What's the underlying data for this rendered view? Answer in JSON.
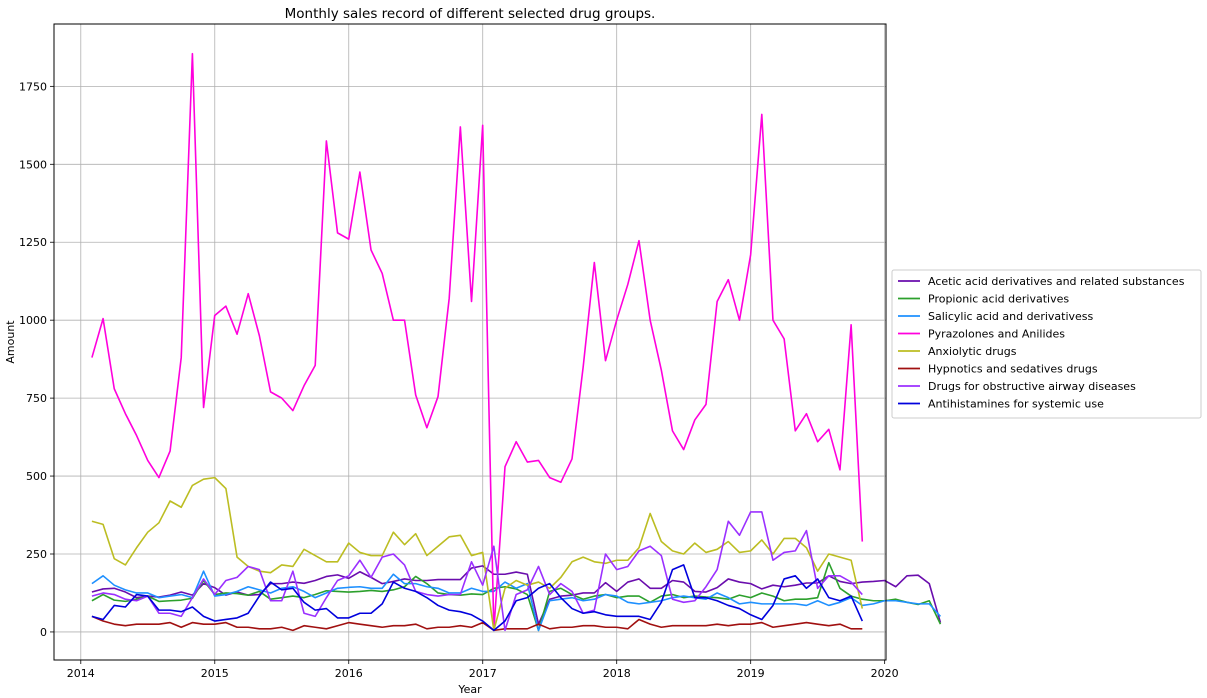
{
  "chart_data": {
    "type": "line",
    "title": "Monthly sales record of different selected drug groups.",
    "xlabel": "Year",
    "ylabel": "Amount",
    "xlim": [
      2013.8,
      2020.01
    ],
    "ylim": [
      -90,
      1950
    ],
    "xticks": [
      2014,
      2015,
      2016,
      2017,
      2018,
      2019,
      2020
    ],
    "xtick_labels": [
      "2014",
      "2015",
      "2016",
      "2017",
      "2018",
      "2019",
      "2020"
    ],
    "yticks": [
      0,
      250,
      500,
      750,
      1000,
      1250,
      1500,
      1750
    ],
    "ytick_labels": [
      "0",
      "250",
      "500",
      "750",
      "1000",
      "1250",
      "1500",
      "1750"
    ],
    "grid": true,
    "legend_position": "outside-right",
    "x_start": 2014.083,
    "x_step_months": 1,
    "series": [
      {
        "name": "Acetic acid derivatives and related substances",
        "color": "#6a0dad",
        "values": [
          128,
          138,
          140,
          128,
          110,
          115,
          112,
          118,
          128,
          118,
          155,
          142,
          118,
          128,
          118,
          120,
          155,
          155,
          160,
          156,
          165,
          178,
          183,
          172,
          193,
          175,
          155,
          162,
          170,
          165,
          165,
          168,
          168,
          168,
          205,
          212,
          185,
          185,
          192,
          185,
          25,
          105,
          115,
          118,
          125,
          125,
          158,
          130,
          160,
          170,
          140,
          140,
          165,
          160,
          130,
          128,
          142,
          170,
          160,
          155,
          138,
          150,
          145,
          150,
          157,
          157,
          180,
          162,
          155,
          160,
          162,
          165,
          145,
          180,
          182,
          155,
          30
        ]
      },
      {
        "name": "Propionic acid derivatives",
        "color": "#2ca02c",
        "values": [
          100,
          120,
          102,
          98,
          105,
          115,
          98,
          100,
          102,
          108,
          165,
          120,
          125,
          123,
          118,
          130,
          105,
          110,
          115,
          110,
          120,
          132,
          130,
          128,
          130,
          133,
          130,
          135,
          145,
          178,
          155,
          125,
          120,
          118,
          122,
          120,
          140,
          145,
          138,
          120,
          5,
          130,
          140,
          120,
          105,
          115,
          120,
          110,
          115,
          115,
          95,
          115,
          120,
          110,
          115,
          112,
          110,
          105,
          118,
          110,
          125,
          115,
          100,
          105,
          105,
          110,
          222,
          140,
          115,
          105,
          100,
          100,
          105,
          95,
          88,
          100,
          25
        ]
      },
      {
        "name": "Salicylic acid and derivativess",
        "color": "#1e90ff",
        "values": [
          155,
          180,
          150,
          135,
          125,
          125,
          110,
          115,
          120,
          110,
          195,
          115,
          120,
          130,
          145,
          135,
          125,
          140,
          145,
          130,
          110,
          125,
          140,
          143,
          145,
          140,
          140,
          185,
          155,
          155,
          145,
          140,
          125,
          125,
          140,
          130,
          130,
          160,
          140,
          155,
          5,
          100,
          105,
          110,
          100,
          105,
          120,
          115,
          95,
          90,
          95,
          100,
          110,
          115,
          110,
          105,
          125,
          110,
          90,
          95,
          90,
          90,
          90,
          90,
          85,
          100,
          85,
          95,
          110,
          85,
          90,
          100,
          100,
          95,
          90,
          90,
          50
        ]
      },
      {
        "name": "Pyrazolones and Anilides",
        "color": "#ff00dd",
        "values": [
          880,
          1005,
          780,
          700,
          630,
          550,
          495,
          580,
          880,
          1855,
          720,
          1015,
          1045,
          955,
          1085,
          950,
          770,
          750,
          710,
          790,
          855,
          1575,
          1280,
          1260,
          1475,
          1225,
          1150,
          1000,
          1000,
          760,
          655,
          755,
          1070,
          1620,
          1060,
          1625,
          5,
          530,
          610,
          545,
          550,
          495,
          480,
          555,
          850,
          1185,
          870,
          1000,
          1115,
          1255,
          1000,
          840,
          645,
          585,
          680,
          730,
          1060,
          1130,
          1000,
          1210,
          1660,
          1000,
          940,
          645,
          700,
          610,
          650,
          520,
          985,
          290
        ]
      },
      {
        "name": "Anxiolytic drugs",
        "color": "#bcbd22",
        "values": [
          355,
          345,
          235,
          215,
          270,
          320,
          350,
          420,
          400,
          470,
          490,
          495,
          460,
          240,
          210,
          195,
          190,
          215,
          210,
          265,
          245,
          225,
          225,
          285,
          255,
          245,
          245,
          320,
          280,
          315,
          245,
          275,
          305,
          310,
          245,
          255,
          5,
          140,
          165,
          150,
          160,
          140,
          175,
          225,
          240,
          225,
          220,
          230,
          230,
          270,
          380,
          290,
          260,
          250,
          285,
          255,
          265,
          290,
          255,
          260,
          295,
          250,
          300,
          300,
          270,
          195,
          250,
          240,
          230,
          75
        ]
      },
      {
        "name": "Hypnotics and sedatives drugs",
        "color": "#a01010",
        "values": [
          50,
          35,
          25,
          20,
          25,
          25,
          25,
          30,
          15,
          30,
          25,
          25,
          30,
          15,
          15,
          10,
          10,
          15,
          5,
          20,
          15,
          10,
          20,
          30,
          25,
          20,
          15,
          20,
          20,
          25,
          10,
          15,
          15,
          20,
          15,
          30,
          5,
          10,
          10,
          10,
          25,
          10,
          15,
          15,
          20,
          20,
          15,
          15,
          10,
          40,
          25,
          15,
          20,
          20,
          20,
          20,
          25,
          20,
          25,
          25,
          30,
          15,
          20,
          25,
          30,
          25,
          20,
          25,
          10,
          10
        ]
      },
      {
        "name": "Drugs for obstructive airway diseases",
        "color": "#9b30ff",
        "values": [
          115,
          125,
          120,
          105,
          100,
          115,
          60,
          60,
          50,
          110,
          170,
          120,
          165,
          175,
          210,
          200,
          100,
          100,
          195,
          60,
          50,
          110,
          165,
          180,
          230,
          175,
          240,
          250,
          215,
          130,
          120,
          115,
          120,
          120,
          225,
          150,
          275,
          5,
          120,
          135,
          210,
          120,
          155,
          130,
          60,
          70,
          250,
          200,
          210,
          260,
          275,
          245,
          105,
          95,
          100,
          145,
          200,
          355,
          310,
          385,
          385,
          230,
          255,
          260,
          325,
          140,
          180,
          180,
          160,
          120
        ]
      },
      {
        "name": "Antihistamines for systemic use",
        "color": "#0000dd",
        "values": [
          50,
          40,
          85,
          80,
          120,
          115,
          70,
          70,
          65,
          80,
          50,
          35,
          40,
          45,
          60,
          115,
          160,
          135,
          140,
          95,
          70,
          75,
          45,
          45,
          60,
          60,
          90,
          160,
          140,
          130,
          110,
          85,
          70,
          65,
          55,
          35,
          5,
          35,
          100,
          110,
          140,
          155,
          110,
          75,
          60,
          65,
          55,
          50,
          50,
          50,
          40,
          95,
          200,
          215,
          110,
          110,
          100,
          85,
          75,
          55,
          40,
          85,
          170,
          180,
          140,
          170,
          110,
          100,
          115,
          35
        ]
      }
    ]
  }
}
